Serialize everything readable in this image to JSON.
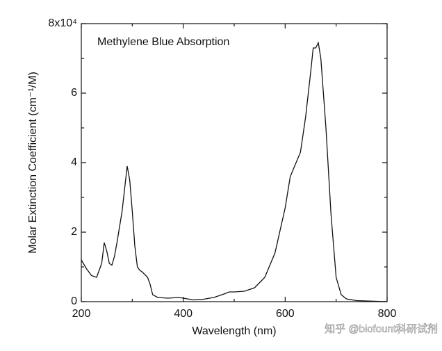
{
  "chart_data": {
    "type": "line",
    "title": "Methylene Blue Absorption",
    "xlabel": "Wavelength (nm)",
    "ylabel": "Molar Extinction Coefficient (cm⁻¹/M)",
    "watermark": "知乎 @biofount科研试剂",
    "x": [
      200,
      210,
      220,
      230,
      240,
      245,
      250,
      255,
      260,
      265,
      270,
      280,
      290,
      295,
      300,
      305,
      310,
      315,
      320,
      330,
      335,
      340,
      350,
      370,
      390,
      400,
      420,
      440,
      460,
      480,
      490,
      500,
      520,
      540,
      560,
      580,
      600,
      610,
      620,
      630,
      640,
      650,
      655,
      660,
      665,
      670,
      680,
      690,
      700,
      710,
      720,
      740,
      760,
      780,
      800
    ],
    "series": [
      {
        "name": "Methylene Blue",
        "color": "#111111",
        "values": [
          1.2,
          0.95,
          0.75,
          0.7,
          1.1,
          1.7,
          1.45,
          1.1,
          1.05,
          1.3,
          1.7,
          2.6,
          3.9,
          3.5,
          2.6,
          1.6,
          1.0,
          0.9,
          0.85,
          0.7,
          0.5,
          0.2,
          0.12,
          0.1,
          0.12,
          0.1,
          0.05,
          0.07,
          0.12,
          0.22,
          0.28,
          0.28,
          0.3,
          0.4,
          0.7,
          1.4,
          2.7,
          3.6,
          3.95,
          4.3,
          5.3,
          6.6,
          7.3,
          7.3,
          7.45,
          7.0,
          5.0,
          2.5,
          0.7,
          0.2,
          0.08,
          0.03,
          0.02,
          0.01,
          0.0
        ]
      }
    ],
    "xlim": [
      200,
      800
    ],
    "xticks": [
      200,
      400,
      600,
      800
    ],
    "ylim": [
      0,
      8
    ],
    "yticks": [
      0,
      2,
      4,
      6,
      {
        "value": 8,
        "label": "8x10⁴"
      }
    ]
  }
}
